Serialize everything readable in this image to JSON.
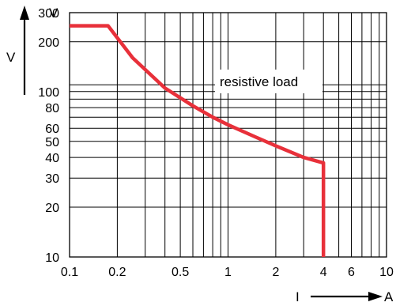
{
  "chart_data": {
    "type": "line",
    "title": "",
    "x_scale": "log",
    "y_scale": "log",
    "xlim": [
      0.1,
      10
    ],
    "ylim": [
      10,
      300
    ],
    "x_unit_letter": "A",
    "x_symbol": "I",
    "y_unit_letter": "V",
    "y_symbol": "V",
    "x_tick_values": [
      0.1,
      0.2,
      0.5,
      1,
      2,
      4,
      6,
      10
    ],
    "x_tick_labels": [
      "0.1",
      "0.2",
      "0.5",
      "1",
      "2",
      "4",
      "6",
      "10"
    ],
    "y_tick_values": [
      10,
      20,
      30,
      40,
      50,
      60,
      80,
      100,
      200,
      300
    ],
    "y_tick_labels": [
      "10",
      "20",
      "30",
      "40",
      "50",
      "60",
      "80",
      "100",
      "200",
      "300"
    ],
    "x_grid_values": [
      0.1,
      0.2,
      0.3,
      0.4,
      0.5,
      0.6,
      0.7,
      0.8,
      0.9,
      1,
      2,
      3,
      4,
      5,
      6,
      7,
      8,
      9,
      10
    ],
    "y_grid_values": [
      10,
      20,
      30,
      40,
      50,
      60,
      70,
      80,
      90,
      100,
      110,
      200,
      300
    ],
    "grid": true,
    "annotation": "resistive load",
    "series": [
      {
        "color": "#e8303a",
        "x": [
          0.1,
          0.175,
          0.25,
          0.4,
          0.6,
          0.8,
          1.0,
          1.5,
          2.0,
          3.0,
          4.0,
          4.0
        ],
        "y": [
          250,
          250,
          160,
          105,
          82,
          70,
          63,
          53,
          47,
          40,
          37,
          10
        ]
      }
    ]
  }
}
